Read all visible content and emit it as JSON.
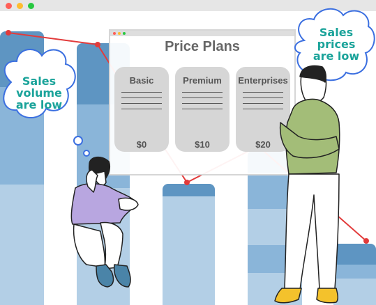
{
  "window": {
    "title": "Price Plans",
    "plans": [
      {
        "name": "Basic",
        "price": "$0"
      },
      {
        "name": "Premium",
        "price": "$10"
      },
      {
        "name": "Enterprises",
        "price": "$20"
      }
    ]
  },
  "bubbles": {
    "left": [
      "Sales",
      "volume",
      "are low"
    ],
    "right": [
      "Sales",
      "prices",
      "are low"
    ]
  },
  "colors": {
    "bar_dark": "#5e95c2",
    "bar_mid": "#8ab5d9",
    "bar_light": "#b3cfe6",
    "trend_line": "#e23b3b",
    "bubble_outline": "#3b6fe0",
    "bubble_text": "#1aa39a",
    "card": "#d6d6d6",
    "traffic_red": "#ff5f57",
    "traffic_yellow": "#febc2e",
    "traffic_green": "#28c840"
  },
  "icons": [
    "sad-person-illustration",
    "confident-person-illustration",
    "thought-cloud-icon"
  ]
}
